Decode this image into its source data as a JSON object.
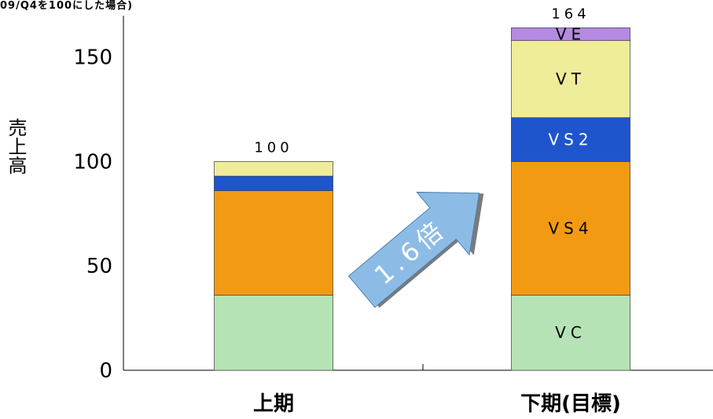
{
  "note": "09/Q4を100にした場合)",
  "chart_data": {
    "type": "bar",
    "stacked": true,
    "categories": [
      "上期",
      "下期(目標)"
    ],
    "ylabel": "売上高",
    "ylim": [
      0,
      165
    ],
    "yticks": [
      0,
      50,
      100,
      150
    ],
    "grid": false,
    "series": [
      {
        "name": "VC",
        "color": "#b6e3b6",
        "values": [
          36,
          36
        ]
      },
      {
        "name": "VS4",
        "color": "#f29a12",
        "values": [
          50,
          64
        ]
      },
      {
        "name": "VS2",
        "color": "#1f55cc",
        "values": [
          7,
          21
        ]
      },
      {
        "name": "VT",
        "color": "#efec9a",
        "values": [
          7,
          37
        ]
      },
      {
        "name": "VE",
        "color": "#b48ae2",
        "values": [
          0,
          6
        ]
      }
    ],
    "totals": [
      100,
      164
    ],
    "annotation": {
      "text": "1.6倍",
      "from": "上期",
      "to": "下期(目標)"
    }
  }
}
